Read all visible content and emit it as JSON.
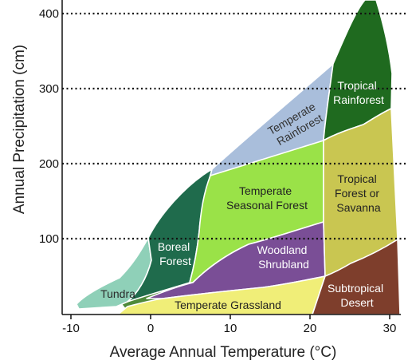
{
  "axes": {
    "x_title": "Average Annual Temperature (°C)",
    "y_title": "Annual Precipitation (cm)",
    "x_ticks": [
      "-10",
      "0",
      "10",
      "20",
      "30"
    ],
    "y_ticks": [
      "100",
      "200",
      "300",
      "400"
    ]
  },
  "colors": {
    "tundra": "#8fd0b8",
    "boreal_forest": "#1f6b4c",
    "temperate_rainforest": "#a9bedb",
    "temperate_seasonal_forest": "#9ae248",
    "woodland_shrubland": "#7a4e96",
    "temperate_grassland": "#f0ee78",
    "tropical_rainforest": "#1f6a1f",
    "tropical_forest_savanna": "#c9c651",
    "subtropical_desert": "#7e3e2c",
    "gap": "#4f8a3a"
  },
  "biomes": {
    "tundra": "Tundra",
    "boreal_forest": [
      "Boreal",
      "Forest"
    ],
    "temperate_rainforest": [
      "Temperate",
      "Rainforest"
    ],
    "temperate_seasonal_forest": [
      "Temperate",
      "Seasonal Forest"
    ],
    "woodland_shrubland": [
      "Woodland",
      "Shrubland"
    ],
    "temperate_grassland": "Temperate Grassland",
    "tropical_rainforest": [
      "Tropical",
      "Rainforest"
    ],
    "tropical_forest_savanna": [
      "Tropical",
      "Forest or",
      "Savanna"
    ],
    "subtropical_desert": [
      "Subtropical",
      "Desert"
    ]
  }
}
